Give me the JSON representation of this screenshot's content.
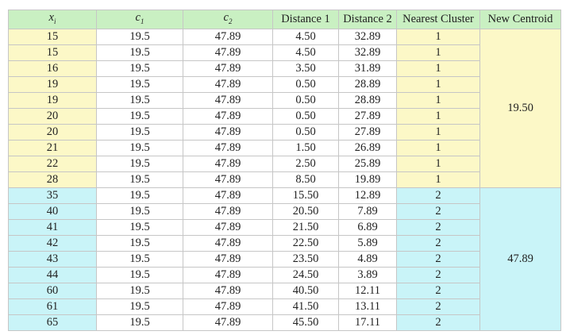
{
  "headers": {
    "x": "x",
    "x_sub": "i",
    "c1": "c",
    "c1_sub": "1",
    "c2": "c",
    "c2_sub": "2",
    "distance1": "Distance 1",
    "distance2": "Distance 2",
    "nearest": "Nearest Cluster",
    "new_centroid": "New Centroid"
  },
  "rows": [
    {
      "x": "15",
      "c1": "19.5",
      "c2": "47.89",
      "d1": "4.50",
      "d2": "32.89",
      "n": "1"
    },
    {
      "x": "15",
      "c1": "19.5",
      "c2": "47.89",
      "d1": "4.50",
      "d2": "32.89",
      "n": "1"
    },
    {
      "x": "16",
      "c1": "19.5",
      "c2": "47.89",
      "d1": "3.50",
      "d2": "31.89",
      "n": "1"
    },
    {
      "x": "19",
      "c1": "19.5",
      "c2": "47.89",
      "d1": "0.50",
      "d2": "28.89",
      "n": "1"
    },
    {
      "x": "19",
      "c1": "19.5",
      "c2": "47.89",
      "d1": "0.50",
      "d2": "28.89",
      "n": "1"
    },
    {
      "x": "20",
      "c1": "19.5",
      "c2": "47.89",
      "d1": "0.50",
      "d2": "27.89",
      "n": "1"
    },
    {
      "x": "20",
      "c1": "19.5",
      "c2": "47.89",
      "d1": "0.50",
      "d2": "27.89",
      "n": "1"
    },
    {
      "x": "21",
      "c1": "19.5",
      "c2": "47.89",
      "d1": "1.50",
      "d2": "26.89",
      "n": "1"
    },
    {
      "x": "22",
      "c1": "19.5",
      "c2": "47.89",
      "d1": "2.50",
      "d2": "25.89",
      "n": "1"
    },
    {
      "x": "28",
      "c1": "19.5",
      "c2": "47.89",
      "d1": "8.50",
      "d2": "19.89",
      "n": "1"
    },
    {
      "x": "35",
      "c1": "19.5",
      "c2": "47.89",
      "d1": "15.50",
      "d2": "12.89",
      "n": "2"
    },
    {
      "x": "40",
      "c1": "19.5",
      "c2": "47.89",
      "d1": "20.50",
      "d2": "7.89",
      "n": "2"
    },
    {
      "x": "41",
      "c1": "19.5",
      "c2": "47.89",
      "d1": "21.50",
      "d2": "6.89",
      "n": "2"
    },
    {
      "x": "42",
      "c1": "19.5",
      "c2": "47.89",
      "d1": "22.50",
      "d2": "5.89",
      "n": "2"
    },
    {
      "x": "43",
      "c1": "19.5",
      "c2": "47.89",
      "d1": "23.50",
      "d2": "4.89",
      "n": "2"
    },
    {
      "x": "44",
      "c1": "19.5",
      "c2": "47.89",
      "d1": "24.50",
      "d2": "3.89",
      "n": "2"
    },
    {
      "x": "60",
      "c1": "19.5",
      "c2": "47.89",
      "d1": "40.50",
      "d2": "12.11",
      "n": "2"
    },
    {
      "x": "61",
      "c1": "19.5",
      "c2": "47.89",
      "d1": "41.50",
      "d2": "13.11",
      "n": "2"
    },
    {
      "x": "65",
      "c1": "19.5",
      "c2": "47.89",
      "d1": "45.50",
      "d2": "17.11",
      "n": "2"
    }
  ],
  "centroids": [
    {
      "cluster": "1",
      "value": "19.50"
    },
    {
      "cluster": "2",
      "value": "47.89"
    }
  ],
  "colors": {
    "header_bg": "#c9f0c2",
    "cluster1_bg": "#fcf8c7",
    "cluster2_bg": "#c9f4f8",
    "border": "#c6c6c6"
  }
}
